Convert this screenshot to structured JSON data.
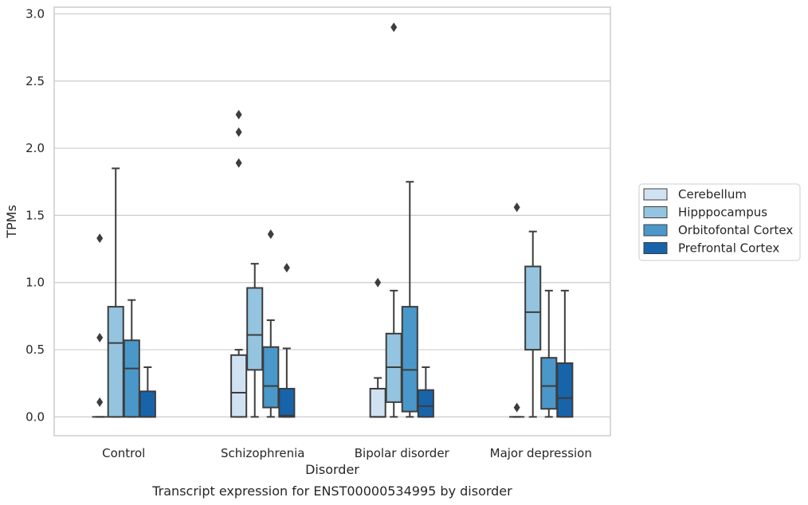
{
  "caption": "Transcript expression for ENST00000534995 by disorder",
  "chart_data": {
    "type": "boxplot",
    "title": "",
    "xlabel": "Disorder",
    "ylabel": "TPMs",
    "ylim": [
      -0.14,
      3.05
    ],
    "yticks": [
      0.0,
      0.5,
      1.0,
      1.5,
      2.0,
      2.5,
      3.0
    ],
    "ytick_labels": [
      "0.0",
      "0.5",
      "1.0",
      "1.5",
      "2.0",
      "2.5",
      "3.0"
    ],
    "grid": "horizontal",
    "legend_position": "right",
    "categories": [
      "Control",
      "Schizophrenia",
      "Bipolar disorder",
      "Major depression"
    ],
    "series": [
      {
        "name": "Cerebellum",
        "color": "#d0e1f2",
        "boxes": [
          {
            "min": 0.0,
            "q1": 0.0,
            "median": 0.0,
            "q3": 0.0,
            "max": 0.0,
            "outliers": [
              0.11,
              0.59,
              1.33
            ]
          },
          {
            "min": 0.0,
            "q1": 0.0,
            "median": 0.18,
            "q3": 0.46,
            "max": 0.5,
            "outliers": [
              1.89,
              2.12,
              2.25
            ]
          },
          {
            "min": 0.0,
            "q1": 0.0,
            "median": 0.0,
            "q3": 0.21,
            "max": 0.29,
            "outliers": [
              1.0
            ]
          },
          {
            "min": 0.0,
            "q1": 0.0,
            "median": 0.0,
            "q3": 0.0,
            "max": 0.0,
            "outliers": [
              0.07,
              1.56
            ]
          }
        ]
      },
      {
        "name": "Hipppocampus",
        "color": "#94c4df",
        "boxes": [
          {
            "min": 0.0,
            "q1": 0.0,
            "median": 0.55,
            "q3": 0.82,
            "max": 1.85,
            "outliers": []
          },
          {
            "min": 0.0,
            "q1": 0.35,
            "median": 0.61,
            "q3": 0.96,
            "max": 1.14,
            "outliers": []
          },
          {
            "min": 0.0,
            "q1": 0.11,
            "median": 0.37,
            "q3": 0.62,
            "max": 0.94,
            "outliers": [
              2.9
            ]
          },
          {
            "min": 0.0,
            "q1": 0.5,
            "median": 0.78,
            "q3": 1.12,
            "max": 1.38,
            "outliers": []
          }
        ]
      },
      {
        "name": "Orbitofontal Cortex",
        "color": "#4a98c9",
        "boxes": [
          {
            "min": 0.0,
            "q1": 0.0,
            "median": 0.36,
            "q3": 0.57,
            "max": 0.87,
            "outliers": []
          },
          {
            "min": 0.0,
            "q1": 0.07,
            "median": 0.23,
            "q3": 0.52,
            "max": 0.72,
            "outliers": [
              1.36
            ]
          },
          {
            "min": 0.0,
            "q1": 0.04,
            "median": 0.35,
            "q3": 0.82,
            "max": 1.75,
            "outliers": []
          },
          {
            "min": 0.0,
            "q1": 0.06,
            "median": 0.23,
            "q3": 0.44,
            "max": 0.94,
            "outliers": []
          }
        ]
      },
      {
        "name": "Prefrontal Cortex",
        "color": "#1764ab",
        "boxes": [
          {
            "min": 0.0,
            "q1": 0.0,
            "median": 0.0,
            "q3": 0.19,
            "max": 0.37,
            "outliers": []
          },
          {
            "min": 0.0,
            "q1": 0.0,
            "median": 0.01,
            "q3": 0.21,
            "max": 0.51,
            "outliers": [
              1.11
            ]
          },
          {
            "min": 0.0,
            "q1": 0.0,
            "median": 0.08,
            "q3": 0.2,
            "max": 0.37,
            "outliers": []
          },
          {
            "min": 0.0,
            "q1": 0.0,
            "median": 0.14,
            "q3": 0.4,
            "max": 0.94,
            "outliers": []
          }
        ]
      }
    ]
  }
}
